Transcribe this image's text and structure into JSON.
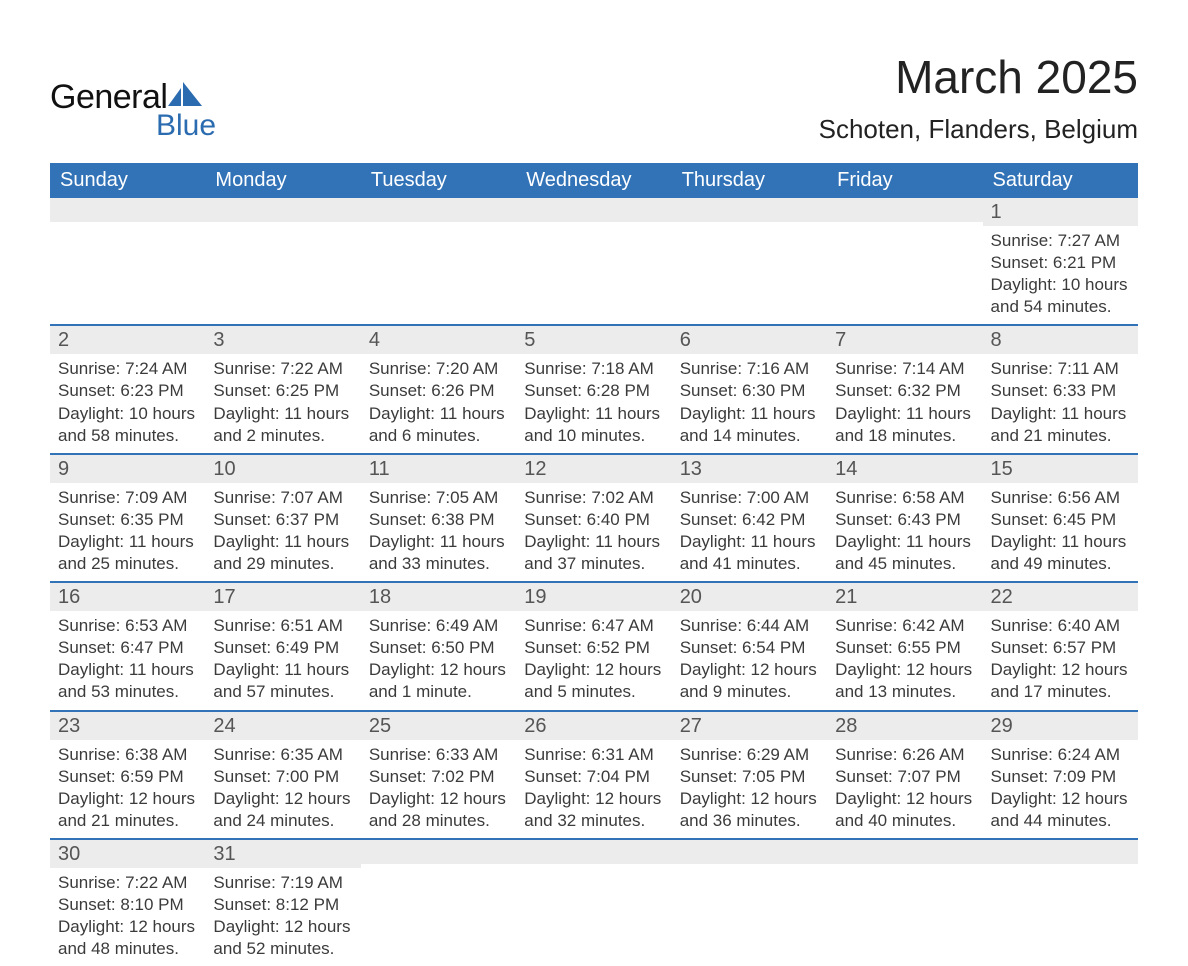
{
  "colors": {
    "header_bg": "#3273b8",
    "header_text": "#ffffff",
    "daynum_bg": "#ececec",
    "daynum_text": "#555555",
    "row_border": "#3273b8",
    "body_text": "#3b3b3b",
    "logo_blue": "#2b6bb0",
    "page_bg": "#ffffff"
  },
  "logo": {
    "word1": "General",
    "word2": "Blue"
  },
  "title": {
    "month": "March 2025",
    "location": "Schoten, Flanders, Belgium"
  },
  "weekdays": [
    "Sunday",
    "Monday",
    "Tuesday",
    "Wednesday",
    "Thursday",
    "Friday",
    "Saturday"
  ],
  "grid": [
    [
      {
        "n": "",
        "sr": "",
        "ss": "",
        "d1": "",
        "d2": ""
      },
      {
        "n": "",
        "sr": "",
        "ss": "",
        "d1": "",
        "d2": ""
      },
      {
        "n": "",
        "sr": "",
        "ss": "",
        "d1": "",
        "d2": ""
      },
      {
        "n": "",
        "sr": "",
        "ss": "",
        "d1": "",
        "d2": ""
      },
      {
        "n": "",
        "sr": "",
        "ss": "",
        "d1": "",
        "d2": ""
      },
      {
        "n": "",
        "sr": "",
        "ss": "",
        "d1": "",
        "d2": ""
      },
      {
        "n": "1",
        "sr": "Sunrise: 7:27 AM",
        "ss": "Sunset: 6:21 PM",
        "d1": "Daylight: 10 hours",
        "d2": "and 54 minutes."
      }
    ],
    [
      {
        "n": "2",
        "sr": "Sunrise: 7:24 AM",
        "ss": "Sunset: 6:23 PM",
        "d1": "Daylight: 10 hours",
        "d2": "and 58 minutes."
      },
      {
        "n": "3",
        "sr": "Sunrise: 7:22 AM",
        "ss": "Sunset: 6:25 PM",
        "d1": "Daylight: 11 hours",
        "d2": "and 2 minutes."
      },
      {
        "n": "4",
        "sr": "Sunrise: 7:20 AM",
        "ss": "Sunset: 6:26 PM",
        "d1": "Daylight: 11 hours",
        "d2": "and 6 minutes."
      },
      {
        "n": "5",
        "sr": "Sunrise: 7:18 AM",
        "ss": "Sunset: 6:28 PM",
        "d1": "Daylight: 11 hours",
        "d2": "and 10 minutes."
      },
      {
        "n": "6",
        "sr": "Sunrise: 7:16 AM",
        "ss": "Sunset: 6:30 PM",
        "d1": "Daylight: 11 hours",
        "d2": "and 14 minutes."
      },
      {
        "n": "7",
        "sr": "Sunrise: 7:14 AM",
        "ss": "Sunset: 6:32 PM",
        "d1": "Daylight: 11 hours",
        "d2": "and 18 minutes."
      },
      {
        "n": "8",
        "sr": "Sunrise: 7:11 AM",
        "ss": "Sunset: 6:33 PM",
        "d1": "Daylight: 11 hours",
        "d2": "and 21 minutes."
      }
    ],
    [
      {
        "n": "9",
        "sr": "Sunrise: 7:09 AM",
        "ss": "Sunset: 6:35 PM",
        "d1": "Daylight: 11 hours",
        "d2": "and 25 minutes."
      },
      {
        "n": "10",
        "sr": "Sunrise: 7:07 AM",
        "ss": "Sunset: 6:37 PM",
        "d1": "Daylight: 11 hours",
        "d2": "and 29 minutes."
      },
      {
        "n": "11",
        "sr": "Sunrise: 7:05 AM",
        "ss": "Sunset: 6:38 PM",
        "d1": "Daylight: 11 hours",
        "d2": "and 33 minutes."
      },
      {
        "n": "12",
        "sr": "Sunrise: 7:02 AM",
        "ss": "Sunset: 6:40 PM",
        "d1": "Daylight: 11 hours",
        "d2": "and 37 minutes."
      },
      {
        "n": "13",
        "sr": "Sunrise: 7:00 AM",
        "ss": "Sunset: 6:42 PM",
        "d1": "Daylight: 11 hours",
        "d2": "and 41 minutes."
      },
      {
        "n": "14",
        "sr": "Sunrise: 6:58 AM",
        "ss": "Sunset: 6:43 PM",
        "d1": "Daylight: 11 hours",
        "d2": "and 45 minutes."
      },
      {
        "n": "15",
        "sr": "Sunrise: 6:56 AM",
        "ss": "Sunset: 6:45 PM",
        "d1": "Daylight: 11 hours",
        "d2": "and 49 minutes."
      }
    ],
    [
      {
        "n": "16",
        "sr": "Sunrise: 6:53 AM",
        "ss": "Sunset: 6:47 PM",
        "d1": "Daylight: 11 hours",
        "d2": "and 53 minutes."
      },
      {
        "n": "17",
        "sr": "Sunrise: 6:51 AM",
        "ss": "Sunset: 6:49 PM",
        "d1": "Daylight: 11 hours",
        "d2": "and 57 minutes."
      },
      {
        "n": "18",
        "sr": "Sunrise: 6:49 AM",
        "ss": "Sunset: 6:50 PM",
        "d1": "Daylight: 12 hours",
        "d2": "and 1 minute."
      },
      {
        "n": "19",
        "sr": "Sunrise: 6:47 AM",
        "ss": "Sunset: 6:52 PM",
        "d1": "Daylight: 12 hours",
        "d2": "and 5 minutes."
      },
      {
        "n": "20",
        "sr": "Sunrise: 6:44 AM",
        "ss": "Sunset: 6:54 PM",
        "d1": "Daylight: 12 hours",
        "d2": "and 9 minutes."
      },
      {
        "n": "21",
        "sr": "Sunrise: 6:42 AM",
        "ss": "Sunset: 6:55 PM",
        "d1": "Daylight: 12 hours",
        "d2": "and 13 minutes."
      },
      {
        "n": "22",
        "sr": "Sunrise: 6:40 AM",
        "ss": "Sunset: 6:57 PM",
        "d1": "Daylight: 12 hours",
        "d2": "and 17 minutes."
      }
    ],
    [
      {
        "n": "23",
        "sr": "Sunrise: 6:38 AM",
        "ss": "Sunset: 6:59 PM",
        "d1": "Daylight: 12 hours",
        "d2": "and 21 minutes."
      },
      {
        "n": "24",
        "sr": "Sunrise: 6:35 AM",
        "ss": "Sunset: 7:00 PM",
        "d1": "Daylight: 12 hours",
        "d2": "and 24 minutes."
      },
      {
        "n": "25",
        "sr": "Sunrise: 6:33 AM",
        "ss": "Sunset: 7:02 PM",
        "d1": "Daylight: 12 hours",
        "d2": "and 28 minutes."
      },
      {
        "n": "26",
        "sr": "Sunrise: 6:31 AM",
        "ss": "Sunset: 7:04 PM",
        "d1": "Daylight: 12 hours",
        "d2": "and 32 minutes."
      },
      {
        "n": "27",
        "sr": "Sunrise: 6:29 AM",
        "ss": "Sunset: 7:05 PM",
        "d1": "Daylight: 12 hours",
        "d2": "and 36 minutes."
      },
      {
        "n": "28",
        "sr": "Sunrise: 6:26 AM",
        "ss": "Sunset: 7:07 PM",
        "d1": "Daylight: 12 hours",
        "d2": "and 40 minutes."
      },
      {
        "n": "29",
        "sr": "Sunrise: 6:24 AM",
        "ss": "Sunset: 7:09 PM",
        "d1": "Daylight: 12 hours",
        "d2": "and 44 minutes."
      }
    ],
    [
      {
        "n": "30",
        "sr": "Sunrise: 7:22 AM",
        "ss": "Sunset: 8:10 PM",
        "d1": "Daylight: 12 hours",
        "d2": "and 48 minutes."
      },
      {
        "n": "31",
        "sr": "Sunrise: 7:19 AM",
        "ss": "Sunset: 8:12 PM",
        "d1": "Daylight: 12 hours",
        "d2": "and 52 minutes."
      },
      {
        "n": "",
        "sr": "",
        "ss": "",
        "d1": "",
        "d2": ""
      },
      {
        "n": "",
        "sr": "",
        "ss": "",
        "d1": "",
        "d2": ""
      },
      {
        "n": "",
        "sr": "",
        "ss": "",
        "d1": "",
        "d2": ""
      },
      {
        "n": "",
        "sr": "",
        "ss": "",
        "d1": "",
        "d2": ""
      },
      {
        "n": "",
        "sr": "",
        "ss": "",
        "d1": "",
        "d2": ""
      }
    ]
  ]
}
